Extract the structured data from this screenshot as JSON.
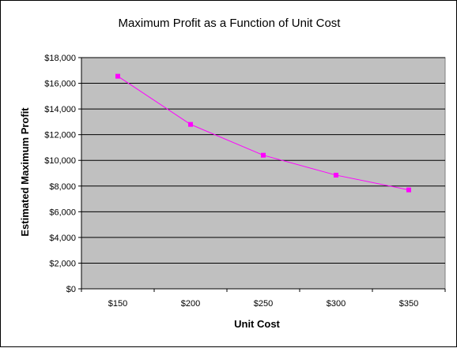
{
  "chart_data": {
    "type": "line",
    "title": "Maximum Profit as a Function of Unit Cost",
    "xlabel": "Unit Cost",
    "ylabel": "Estimated Maximum Profit",
    "categories": [
      "$150",
      "$200",
      "$250",
      "$300",
      "$350"
    ],
    "series": [
      {
        "values": [
          16550,
          12800,
          10400,
          8850,
          7700
        ]
      }
    ],
    "ylim": [
      0,
      18000
    ],
    "yticks": [
      "$0",
      "$2,000",
      "$4,000",
      "$6,000",
      "$8,000",
      "$10,000",
      "$12,000",
      "$14,000",
      "$16,000",
      "$18,000"
    ],
    "grid": true,
    "colors": {
      "plot_area": "#c0c0c0",
      "series": "#ff00ff",
      "gridline": "#000000"
    }
  }
}
